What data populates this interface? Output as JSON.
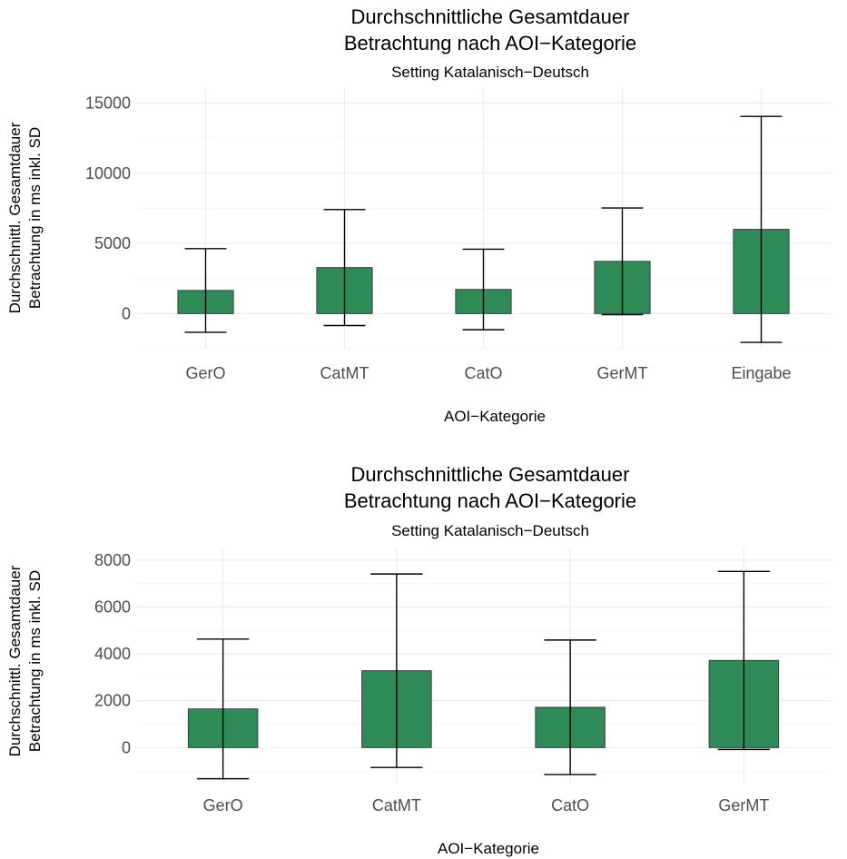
{
  "chart_data": [
    {
      "type": "bar",
      "title_line1": "Durchschnittliche Gesamtdauer",
      "title_line2": "Betrachtung nach AOI−Kategorie",
      "subtitle": "Setting Katalanisch−Deutsch",
      "xlabel": "AOI−Kategorie",
      "ylabel_line1": "Durchschnittl. Gesamtdauer",
      "ylabel_line2": "Betrachtung in ms inkl. SD",
      "categories": [
        "GerO",
        "CatMT",
        "CatO",
        "GerMT",
        "Eingabe"
      ],
      "values": [
        1650,
        3280,
        1720,
        3720,
        6000
      ],
      "sd": [
        2980,
        4130,
        2870,
        3800,
        8050
      ],
      "ylim": [
        -2500,
        16000
      ],
      "yticks": [
        0,
        5000,
        10000,
        15000
      ],
      "ytick_labels": [
        "0",
        "5000",
        "10000",
        "15000"
      ],
      "bar_color": "#2e8b57",
      "grid": true,
      "legend": "none"
    },
    {
      "type": "bar",
      "title_line1": "Durchschnittliche Gesamtdauer",
      "title_line2": "Betrachtung nach AOI−Kategorie",
      "subtitle": "Setting Katalanisch−Deutsch",
      "xlabel": "AOI−Kategorie",
      "ylabel_line1": "Durchschnittl. Gesamtdauer",
      "ylabel_line2": "Betrachtung in ms inkl. SD",
      "categories": [
        "GerO",
        "CatMT",
        "CatO",
        "GerMT"
      ],
      "values": [
        1650,
        3280,
        1720,
        3720
      ],
      "sd": [
        2980,
        4130,
        2870,
        3800
      ],
      "ylim": [
        -1500,
        8500
      ],
      "yticks": [
        0,
        2000,
        4000,
        6000,
        8000
      ],
      "ytick_labels": [
        "0",
        "2000",
        "4000",
        "6000",
        "8000"
      ],
      "bar_color": "#2e8b57",
      "grid": true,
      "legend": "none"
    }
  ]
}
